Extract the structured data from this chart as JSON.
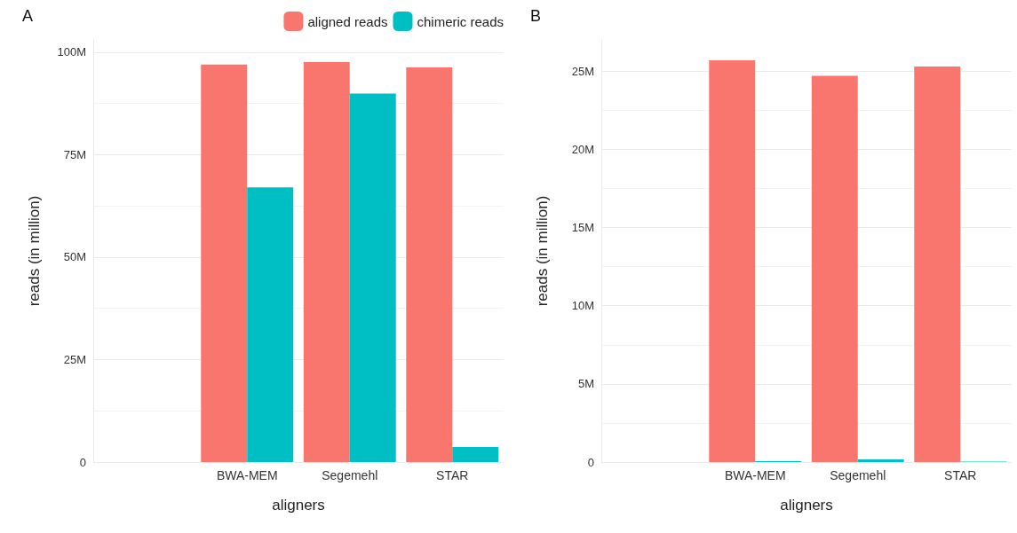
{
  "chart_data": [
    {
      "type": "bar",
      "title": "A",
      "xlabel": "aligners",
      "ylabel": "reads (in million)",
      "categories": [
        null,
        "BWA-MEM",
        "Segemehl",
        "STAR"
      ],
      "series": [
        {
          "name": "aligned reads",
          "color": "#f8766d",
          "values": [
            null,
            97.0,
            97.6,
            96.3
          ]
        },
        {
          "name": "chimeric reads",
          "color": "#00bfc4",
          "values": [
            null,
            67.0,
            89.9,
            3.7
          ]
        }
      ],
      "ylim": [
        0,
        103
      ],
      "yticks": [
        {
          "value": 0,
          "label": "0"
        },
        {
          "value": 25,
          "label": "25M"
        },
        {
          "value": 50,
          "label": "50M"
        },
        {
          "value": 75,
          "label": "75M"
        },
        {
          "value": 100,
          "label": "100M"
        }
      ],
      "grid": true,
      "legend": "top right"
    },
    {
      "type": "bar",
      "title": "B",
      "xlabel": "aligners",
      "ylabel": "reads (in million)",
      "categories": [
        null,
        "BWA-MEM",
        "Segemehl",
        "STAR"
      ],
      "series": [
        {
          "color": "#f8766d",
          "values": [
            null,
            25.7,
            24.7,
            25.3
          ]
        },
        {
          "color": "#00bfc4",
          "values": [
            null,
            0.05,
            0.17,
            0.03
          ]
        }
      ],
      "ylim": [
        0,
        27
      ],
      "yticks": [
        {
          "value": 0,
          "label": "0"
        },
        {
          "value": 5,
          "label": "5M"
        },
        {
          "value": 10,
          "label": "10M"
        },
        {
          "value": 15,
          "label": "15M"
        },
        {
          "value": 20,
          "label": "20M"
        },
        {
          "value": 25,
          "label": "25M"
        }
      ],
      "grid": true,
      "legend": false
    }
  ]
}
